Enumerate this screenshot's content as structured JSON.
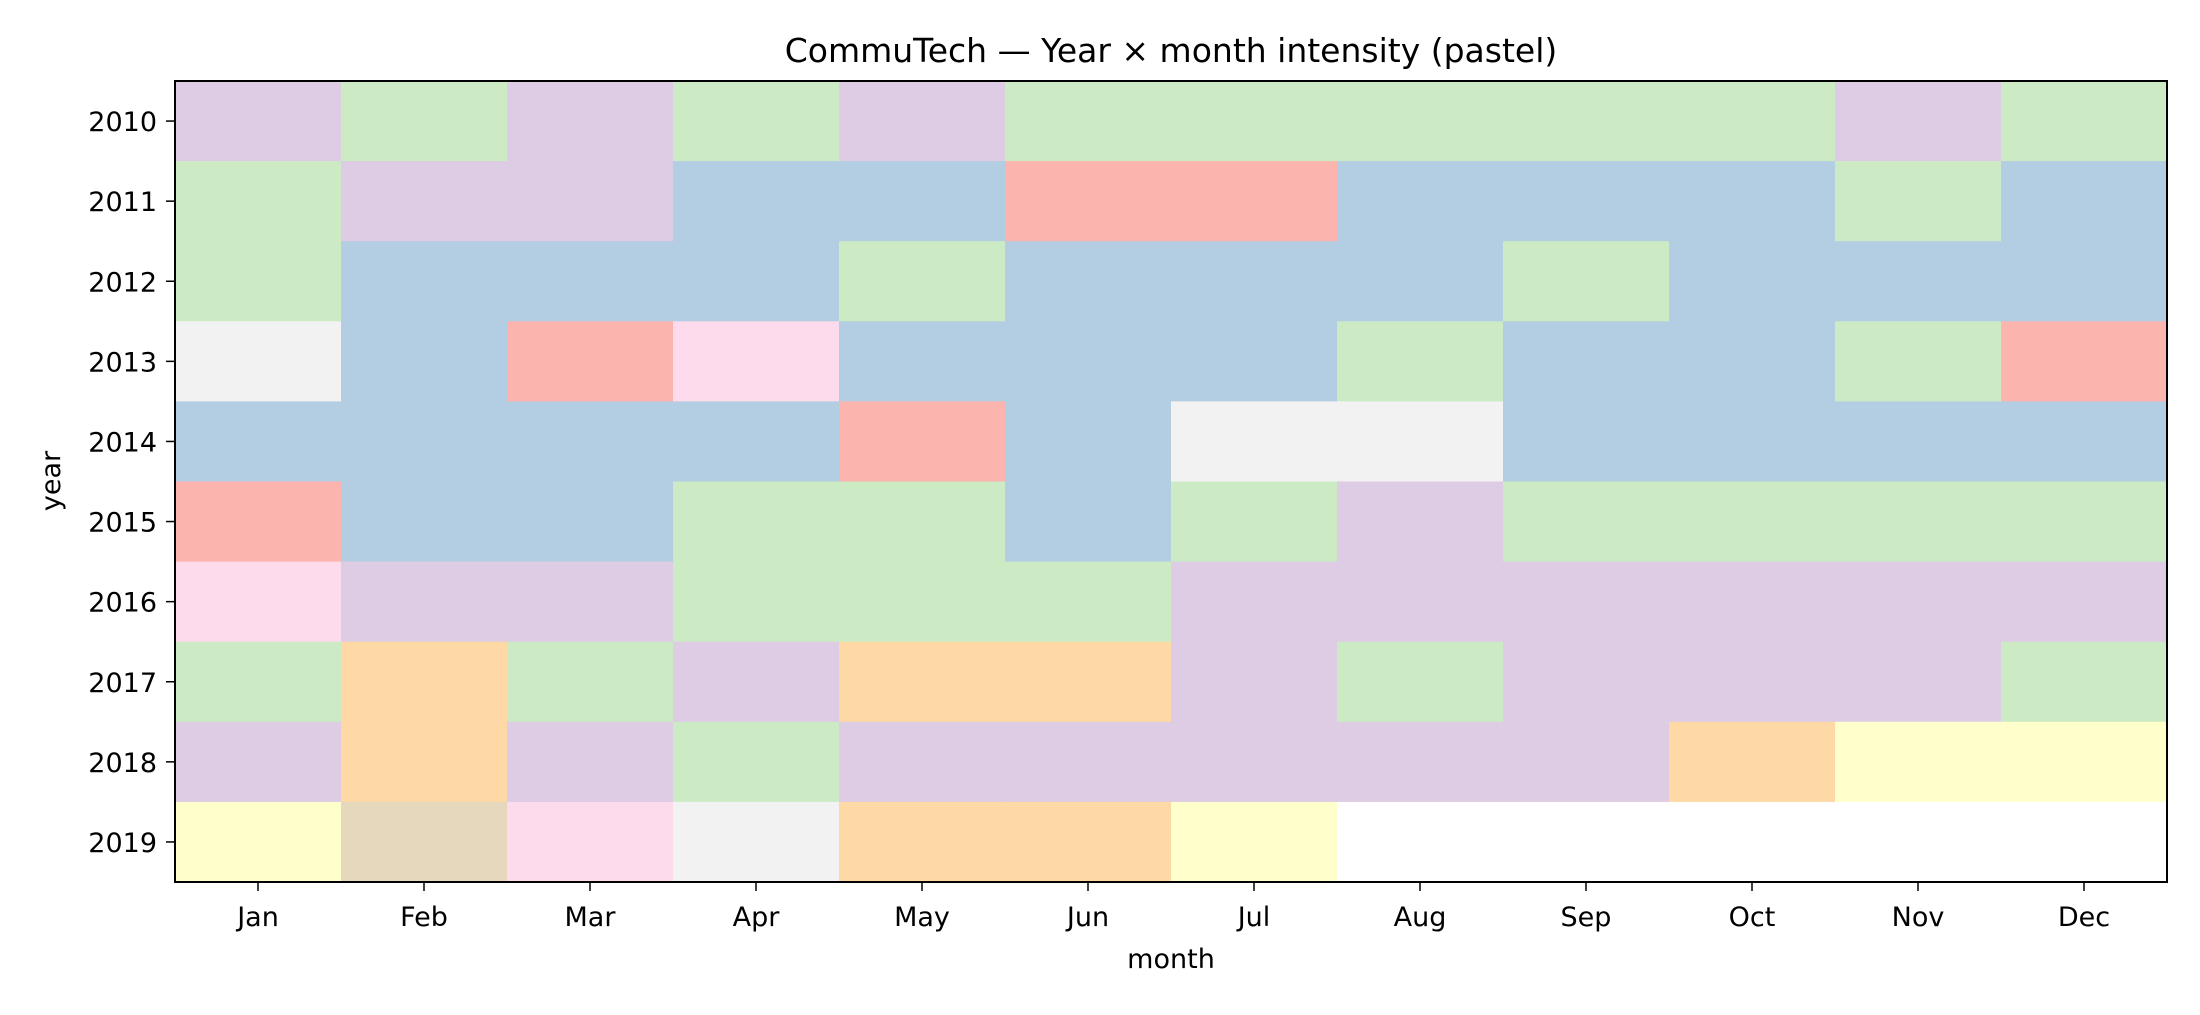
{
  "chart_data": {
    "type": "heatmap",
    "title": "CommuTech — Year × month intensity (pastel)",
    "xlabel": "month",
    "ylabel": "year",
    "x": [
      "Jan",
      "Feb",
      "Mar",
      "Apr",
      "May",
      "Jun",
      "Jul",
      "Aug",
      "Sep",
      "Oct",
      "Nov",
      "Dec"
    ],
    "y": [
      "2010",
      "2011",
      "2012",
      "2013",
      "2014",
      "2015",
      "2016",
      "2017",
      "2018",
      "2019"
    ],
    "colormap": "Pastel1",
    "color_levels": {
      "0": "#fbb4ae",
      "1": "#b3cde3",
      "2": "#ccebc5",
      "3": "#decbe4",
      "4": "#fed9a6",
      "5": "#ffffcc",
      "6": "#e5d8bd",
      "7": "#fddaec",
      "8": "#f2f2f2"
    },
    "missing_color": "#ffffff",
    "values": [
      [
        3,
        2,
        3,
        2,
        3,
        2,
        2,
        2,
        2,
        2,
        3,
        2
      ],
      [
        2,
        3,
        3,
        1,
        1,
        0,
        0,
        1,
        1,
        1,
        2,
        1
      ],
      [
        2,
        1,
        1,
        1,
        2,
        1,
        1,
        1,
        2,
        1,
        1,
        1
      ],
      [
        8,
        1,
        0,
        7,
        1,
        1,
        1,
        2,
        1,
        1,
        2,
        0
      ],
      [
        1,
        1,
        1,
        1,
        0,
        1,
        8,
        8,
        1,
        1,
        1,
        1
      ],
      [
        0,
        1,
        1,
        2,
        2,
        1,
        2,
        3,
        2,
        2,
        2,
        2
      ],
      [
        7,
        3,
        3,
        2,
        2,
        2,
        3,
        3,
        3,
        3,
        3,
        3
      ],
      [
        2,
        4,
        2,
        3,
        4,
        4,
        3,
        2,
        3,
        3,
        3,
        2
      ],
      [
        3,
        4,
        3,
        2,
        3,
        3,
        3,
        3,
        3,
        4,
        5,
        5
      ],
      [
        5,
        6,
        7,
        8,
        4,
        4,
        5,
        null,
        null,
        null,
        null,
        null
      ]
    ]
  }
}
